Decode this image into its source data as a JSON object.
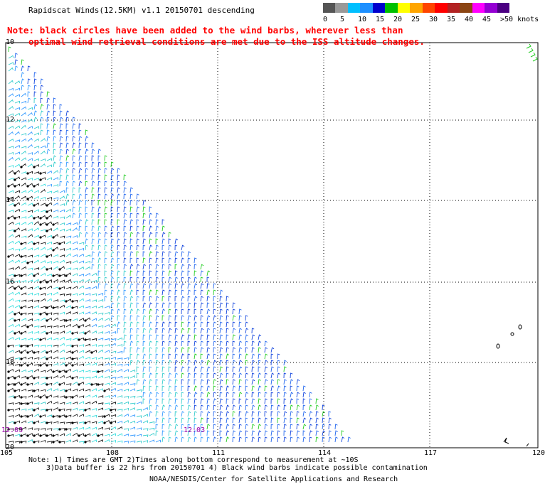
{
  "title": "Rapidscat Winds(12.5KM) v1.1 20150701 descending",
  "note_line1": "Note: black circles have been added to the wind barbs, wherever less than",
  "note_line2": "optimal wind retrieval conditions are met due to the ISS altitude changes.",
  "legend": {
    "colors": [
      "#555555",
      "#999999",
      "#00bfff",
      "#1e90ff",
      "#0000cd",
      "#00c000",
      "#ffff00",
      "#ffa500",
      "#ff4500",
      "#ff0000",
      "#b22222",
      "#8b4513",
      "#ff00ff",
      "#9400d3",
      "#4b0082"
    ],
    "labels": [
      "0",
      "5",
      "10",
      "15",
      "20",
      "25",
      "30",
      "35",
      "40",
      "45",
      ">50 knots"
    ]
  },
  "axes": {
    "lon_labels": [
      "105",
      "108",
      "111",
      "114",
      "117",
      "120"
    ],
    "lat_labels": [
      "10",
      "12",
      "14",
      "16",
      "18",
      "20"
    ]
  },
  "time_labels": [
    "12:03",
    "12:03"
  ],
  "footer": {
    "line1": "Note: 1) Times are GMT 2)Times along bottom correspond to measurement at ~10S",
    "line2": "3)Data buffer is 22 hrs from 20150701 4) Black wind barbs indicate possible contamination",
    "line3": "NOAA/NESDIS/Center for Satellite Applications and Research"
  }
}
